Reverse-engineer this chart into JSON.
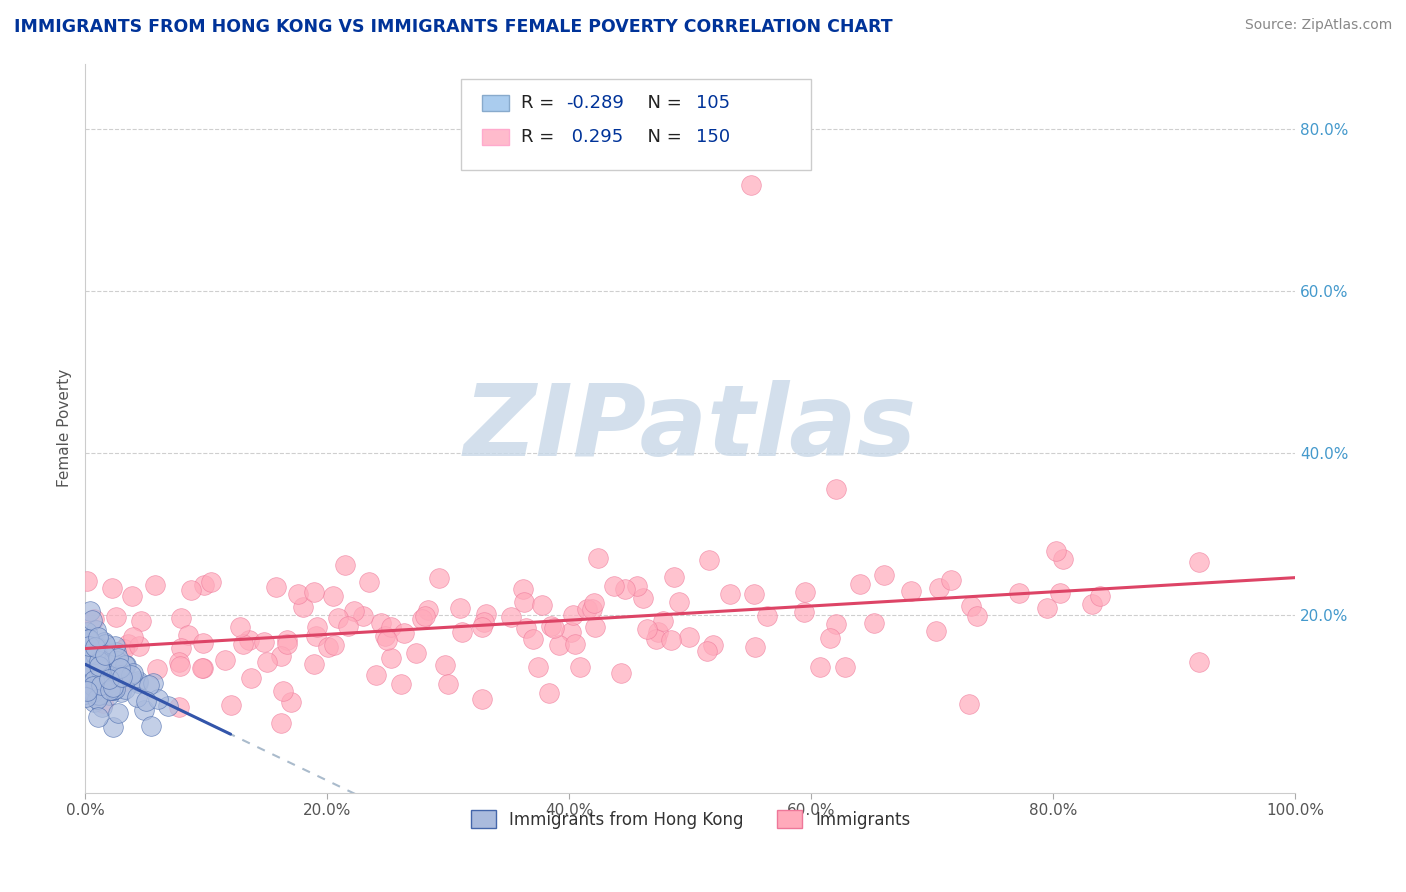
{
  "title": "IMMIGRANTS FROM HONG KONG VS IMMIGRANTS FEMALE POVERTY CORRELATION CHART",
  "source": "Source: ZipAtlas.com",
  "ylabel": "Female Poverty",
  "xlim": [
    0,
    1.0
  ],
  "ylim": [
    -0.02,
    0.88
  ],
  "xticks": [
    0.0,
    0.2,
    0.4,
    0.6,
    0.8,
    1.0
  ],
  "xticklabels": [
    "0.0%",
    "20.0%",
    "40.0%",
    "60.0%",
    "80.0%",
    "100.0%"
  ],
  "ytick_positions": [
    0.2,
    0.4,
    0.6,
    0.8
  ],
  "right_ytick_labels": [
    "20.0%",
    "40.0%",
    "60.0%",
    "80.0%"
  ],
  "blue_R": -0.289,
  "blue_N": 105,
  "pink_R": 0.295,
  "pink_N": 150,
  "blue_fill": "#AABBDD",
  "blue_edge": "#4466AA",
  "pink_fill": "#FFAABB",
  "pink_edge": "#EE7799",
  "blue_line_color": "#3355AA",
  "blue_dash_color": "#AABBCC",
  "pink_line_color": "#DD4466",
  "legend_blue_fill": "#AACCEE",
  "legend_blue_edge": "#88AACC",
  "legend_pink_fill": "#FFBBCC",
  "legend_pink_edge": "#FFAACC",
  "legend_blue_label": "Immigrants from Hong Kong",
  "legend_pink_label": "Immigrants",
  "watermark_color": "#C8D8E8",
  "grid_color": "#BBBBBB",
  "title_color": "#003399",
  "r_n_color": "#003399",
  "source_color": "#888888"
}
